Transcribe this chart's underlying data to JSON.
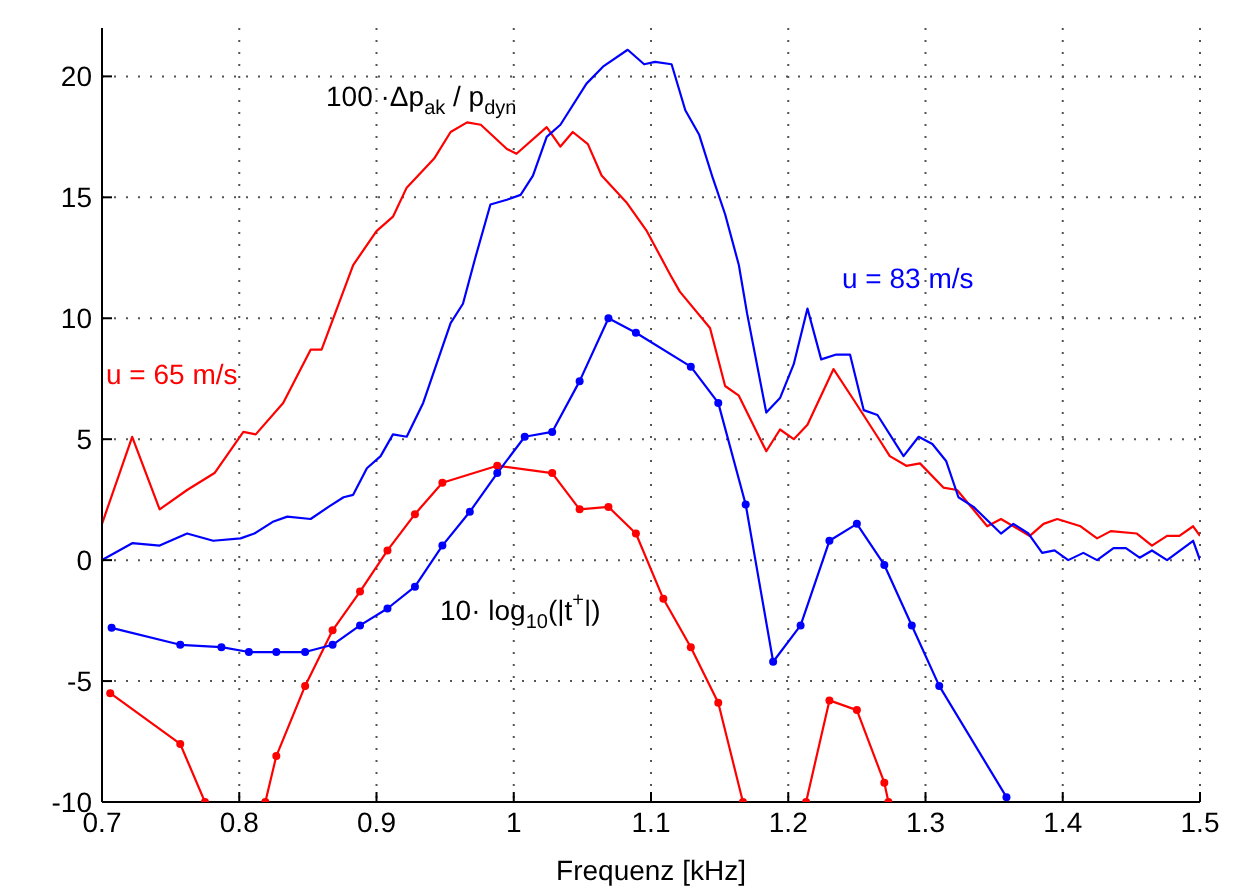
{
  "chart_data": {
    "type": "line",
    "xlabel": "Frequenz [kHz]",
    "xlim": [
      0.7,
      1.5
    ],
    "xticks": [
      0.7,
      0.8,
      0.9,
      1,
      1.1,
      1.2,
      1.3,
      1.4,
      1.5
    ],
    "ylim": [
      -10,
      22
    ],
    "yticks": [
      -10,
      -5,
      0,
      5,
      10,
      15,
      20
    ],
    "grid": true,
    "legend": false,
    "line_style": "solid",
    "annotations": [
      "100 ·Δp$_{ak}$ / p$_{dyn}$",
      "10· log$_{10}$(|t$^{+}$|)"
    ],
    "series": [
      {
        "name": "u = 65 m/s",
        "color": "#ff0000",
        "x": [
          0.7,
          0.722,
          0.742,
          0.762,
          0.782,
          0.803,
          0.812,
          0.832,
          0.852,
          0.86,
          0.883,
          0.9,
          0.912,
          0.922,
          0.942,
          0.954,
          0.966,
          0.976,
          0.995,
          1.002,
          1.024,
          1.034,
          1.043,
          1.054,
          1.064,
          1.082,
          1.097,
          1.114,
          1.121,
          1.143,
          1.154,
          1.164,
          1.184,
          1.194,
          1.204,
          1.214,
          1.233,
          1.248,
          1.265,
          1.274,
          1.286,
          1.296,
          1.313,
          1.323,
          1.345,
          1.355,
          1.376,
          1.386,
          1.396,
          1.413,
          1.425,
          1.435,
          1.454,
          1.465,
          1.476,
          1.485,
          1.495,
          1.5
        ],
        "values": [
          1.5,
          5.1,
          2.1,
          2.9,
          3.6,
          5.3,
          5.2,
          6.5,
          8.7,
          8.7,
          12.2,
          13.6,
          14.2,
          15.4,
          16.6,
          17.7,
          18.1,
          18.0,
          17.0,
          16.8,
          17.9,
          17.1,
          17.7,
          17.2,
          15.9,
          14.8,
          13.6,
          11.8,
          11.1,
          9.6,
          7.2,
          6.8,
          4.5,
          5.4,
          5.0,
          5.6,
          7.9,
          6.6,
          5.1,
          4.3,
          3.9,
          4.0,
          3.0,
          2.9,
          1.4,
          1.7,
          1.0,
          1.5,
          1.7,
          1.4,
          0.9,
          1.2,
          1.1,
          0.6,
          1.0,
          1.0,
          1.4,
          1.0
        ]
      },
      {
        "name": "u = 83 m/s",
        "color": "#0000ff",
        "x": [
          0.7,
          0.722,
          0.742,
          0.762,
          0.781,
          0.801,
          0.811,
          0.825,
          0.835,
          0.852,
          0.865,
          0.876,
          0.883,
          0.893,
          0.903,
          0.912,
          0.922,
          0.934,
          0.954,
          0.963,
          0.972,
          0.983,
          0.995,
          1.005,
          1.014,
          1.024,
          1.034,
          1.053,
          1.065,
          1.083,
          1.095,
          1.103,
          1.115,
          1.125,
          1.135,
          1.145,
          1.154,
          1.164,
          1.17,
          1.184,
          1.194,
          1.204,
          1.214,
          1.224,
          1.235,
          1.245,
          1.255,
          1.265,
          1.284,
          1.295,
          1.305,
          1.315,
          1.324,
          1.335,
          1.355,
          1.364,
          1.375,
          1.385,
          1.394,
          1.404,
          1.415,
          1.425,
          1.437,
          1.446,
          1.456,
          1.465,
          1.476,
          1.495,
          1.5
        ],
        "values": [
          0,
          0.7,
          0.6,
          1.1,
          0.8,
          0.9,
          1.1,
          1.6,
          1.8,
          1.7,
          2.2,
          2.6,
          2.7,
          3.8,
          4.3,
          5.2,
          5.1,
          6.5,
          9.8,
          10.6,
          12.5,
          14.7,
          14.9,
          15.1,
          15.9,
          17.5,
          18.0,
          19.7,
          20.4,
          21.1,
          20.5,
          20.6,
          20.5,
          18.6,
          17.6,
          15.8,
          14.3,
          12.2,
          10.2,
          6.1,
          6.7,
          8.1,
          10.4,
          8.3,
          8.5,
          8.5,
          6.2,
          6.0,
          4.3,
          5.1,
          4.8,
          4.1,
          2.6,
          2.2,
          1.1,
          1.5,
          1.1,
          0.3,
          0.4,
          0,
          0.3,
          0,
          0.5,
          0.5,
          0.1,
          0.4,
          0,
          0.8,
          0
        ]
      },
      {
        "color": "#ff0000",
        "marker": "circle",
        "x": [
          0.706,
          0.757,
          0.775,
          0.797,
          0.819,
          0.827,
          0.848,
          0.868,
          0.888,
          0.908,
          0.928,
          0.948,
          0.988,
          1.028,
          1.048,
          1.069,
          1.089,
          1.109,
          1.129,
          1.149,
          1.167,
          1.19,
          1.213,
          1.23,
          1.25,
          1.27,
          1.273
        ],
        "values": [
          -5.5,
          -7.6,
          -10,
          null,
          -10,
          -8.1,
          -5.2,
          -2.9,
          -1.3,
          0.4,
          1.9,
          3.2,
          3.9,
          3.6,
          2.1,
          2.2,
          1.1,
          -1.6,
          -3.6,
          -5.9,
          -10,
          null,
          -10,
          -5.8,
          -6.2,
          -9.2,
          -10
        ]
      },
      {
        "color": "#0000ff",
        "marker": "circle",
        "x": [
          0.707,
          0.757,
          0.787,
          0.807,
          0.827,
          0.848,
          0.868,
          0.888,
          0.908,
          0.928,
          0.948,
          0.968,
          0.988,
          1.008,
          1.028,
          1.048,
          1.069,
          1.089,
          1.129,
          1.149,
          1.169,
          1.189,
          1.209,
          1.23,
          1.25,
          1.27,
          1.29,
          1.31,
          1.359
        ],
        "values": [
          -2.8,
          -3.5,
          -3.6,
          -3.8,
          -3.8,
          -3.8,
          -3.5,
          -2.7,
          -2.0,
          -1.1,
          0.6,
          2.0,
          3.6,
          5.1,
          5.3,
          7.4,
          10.0,
          9.4,
          8.0,
          6.5,
          2.3,
          -4.2,
          -2.7,
          0.8,
          1.5,
          -0.2,
          -2.7,
          -5.2,
          -9.8
        ]
      }
    ]
  }
}
